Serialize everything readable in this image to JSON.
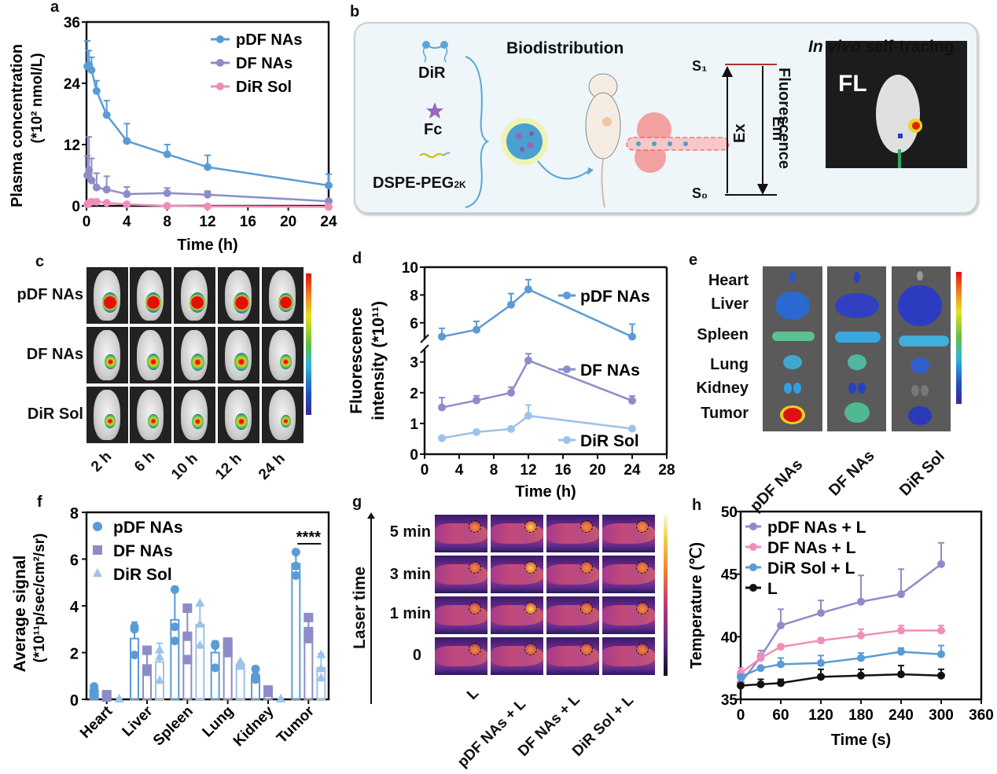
{
  "panel_labels": [
    "a",
    "b",
    "c",
    "d",
    "e",
    "f",
    "g",
    "h"
  ],
  "colors": {
    "pdf": "#5b9bd5",
    "df": "#8e8cc8",
    "dir": "#ee8fbb",
    "dir_light": "#9cc3ea",
    "laser": "#111111",
    "panel_b_bg": "#eef6f9"
  },
  "chart_data": [
    {
      "id": "a",
      "type": "line",
      "title": "",
      "xlabel": "Time (h)",
      "ylabel": "Plasma concentration",
      "ylabel2": "(*10² nmol/L)",
      "xlim": [
        0,
        24
      ],
      "ylim": [
        0,
        36
      ],
      "xticks": [
        0,
        4,
        8,
        12,
        16,
        20,
        24
      ],
      "yticks": [
        0,
        12,
        24,
        36
      ],
      "legend": "top-right",
      "x": [
        0.083,
        0.25,
        0.5,
        1,
        2,
        4,
        8,
        12,
        24
      ],
      "series": [
        {
          "name": "pDF NAs",
          "color": "#5b9bd5",
          "values": [
            27.3,
            27.6,
            26.6,
            22.5,
            17.8,
            12.7,
            10.1,
            7.6,
            4.0
          ],
          "err": [
            5.0,
            2.8,
            2.5,
            2.0,
            2.8,
            3.4,
            1.9,
            2.3,
            2.2
          ]
        },
        {
          "name": "DF NAs",
          "color": "#8e8cc8",
          "values": [
            6.0,
            7.0,
            5.0,
            3.6,
            3.2,
            2.3,
            2.5,
            2.2,
            0.9
          ],
          "err": [
            3.8,
            6.5,
            4.3,
            2.8,
            2.6,
            1.4,
            1.0,
            0.7,
            0.0
          ]
        },
        {
          "name": "DiR Sol",
          "color": "#ee8fbb",
          "values": [
            0.3,
            0.6,
            0.8,
            0.8,
            0.6,
            0.3,
            0.0,
            -0.1,
            -0.2
          ],
          "err": [
            0,
            0,
            0,
            0,
            0,
            0,
            0,
            0,
            0
          ]
        }
      ]
    },
    {
      "id": "d",
      "type": "line",
      "xlabel": "Time (h)",
      "ylabel": "Fluorescence",
      "ylabel2": "intensity (*10¹¹)",
      "xlim": [
        0,
        28
      ],
      "y_break": {
        "lower": [
          0,
          3.4
        ],
        "upper": [
          4.5,
          10
        ]
      },
      "xticks": [
        0,
        4,
        8,
        12,
        16,
        20,
        24,
        28
      ],
      "yticks_lower": [
        0,
        1,
        2,
        3
      ],
      "yticks_upper": [
        6,
        8,
        10
      ],
      "legend": "inline-right",
      "x": [
        2,
        6,
        10,
        12,
        24
      ],
      "series": [
        {
          "name": "pDF NAs",
          "color": "#5b9bd5",
          "values": [
            5.0,
            5.5,
            7.3,
            8.4,
            5.0
          ],
          "err": [
            0.6,
            0.6,
            0.8,
            0.7,
            0.9
          ]
        },
        {
          "name": "DF NAs",
          "color": "#8e8cc8",
          "values": [
            1.52,
            1.75,
            2.0,
            3.05,
            1.74
          ],
          "err": [
            0.32,
            0.15,
            0.18,
            0.22,
            0.15
          ]
        },
        {
          "name": "DiR Sol",
          "color": "#9cc3ea",
          "values": [
            0.52,
            0.72,
            0.82,
            1.25,
            0.83
          ],
          "err": [
            0,
            0,
            0,
            0.35,
            0
          ]
        }
      ]
    },
    {
      "id": "f",
      "type": "bar",
      "xlabel": "",
      "ylabel": "Average signal",
      "ylabel2": "(*10¹¹p/sec/cm²/sr)",
      "ylim": [
        0,
        8
      ],
      "yticks": [
        0,
        2,
        4,
        6,
        8
      ],
      "legend": "top-left",
      "categories": [
        "Heart",
        "Liver",
        "Spleen",
        "Lung",
        "Kidney",
        "Tumor"
      ],
      "series": [
        {
          "name": "pDF NAs",
          "marker": "circle",
          "color": "#5b9bd5",
          "values": [
            0.4,
            2.6,
            3.4,
            2.0,
            1.0,
            5.8
          ],
          "err": [
            0.1,
            0.7,
            1.3,
            0.5,
            0.3,
            0.5
          ],
          "points": [
            [
              0.2,
              0.4,
              0.55
            ],
            [
              1.9,
              3.0,
              3.1
            ],
            [
              2.5,
              3.1,
              4.7
            ],
            [
              1.35,
              2.3,
              2.35
            ],
            [
              0.85,
              1.0,
              1.3
            ],
            [
              5.3,
              5.7,
              6.3
            ]
          ]
        },
        {
          "name": "DF NAs",
          "marker": "square",
          "color": "#8e8cc8",
          "values": [
            0.15,
            1.45,
            2.8,
            2.25,
            0.35,
            3.0
          ],
          "err": [
            0,
            0.6,
            1.1,
            0.2,
            0,
            0.5
          ],
          "points": [
            [
              0.1,
              0.15,
              0.2
            ],
            [
              1.2,
              1.3,
              2.1
            ],
            [
              1.7,
              2.7,
              3.9
            ],
            [
              2.0,
              2.3,
              2.45
            ],
            [
              0.3,
              0.35,
              0.4
            ],
            [
              2.6,
              2.9,
              3.5
            ]
          ]
        },
        {
          "name": "DiR Sol",
          "marker": "triangle",
          "color": "#9cc3ea",
          "values": [
            0.0,
            1.6,
            3.2,
            1.5,
            0.0,
            1.35
          ],
          "err": [
            0,
            0.8,
            0.9,
            0.1,
            0,
            0.6
          ],
          "points": [
            [
              0,
              0,
              0
            ],
            [
              0.8,
              1.8,
              2.1
            ],
            [
              2.3,
              3.2,
              4.1
            ],
            [
              1.4,
              1.5,
              1.6
            ],
            [
              0,
              0,
              0
            ],
            [
              0.9,
              1.3,
              1.9
            ]
          ]
        }
      ],
      "annotation": {
        "text": "****",
        "between": [
          "pDF NAs",
          "DiR Sol"
        ],
        "category": "Tumor"
      }
    },
    {
      "id": "h",
      "type": "line",
      "xlabel": "Time (s)",
      "ylabel": "Temperature (℃)",
      "xlim": [
        0,
        360
      ],
      "ylim": [
        35,
        50
      ],
      "xticks": [
        0,
        60,
        120,
        180,
        240,
        300,
        360
      ],
      "yticks": [
        35,
        40,
        45,
        50
      ],
      "legend": "top-left",
      "x": [
        0,
        30,
        60,
        120,
        180,
        240,
        300
      ],
      "series": [
        {
          "name": "pDF NAs + L",
          "color": "#8e8cc8",
          "values": [
            36.3,
            38.4,
            40.9,
            41.9,
            42.8,
            43.4,
            45.8
          ],
          "err": [
            0,
            0.5,
            1.3,
            1.0,
            2.1,
            2.0,
            1.7
          ]
        },
        {
          "name": "DF NAs + L",
          "color": "#ee8fbb",
          "values": [
            37.1,
            38.3,
            39.2,
            39.7,
            40.1,
            40.5,
            40.5
          ],
          "err": [
            0.4,
            0.4,
            0,
            0.2,
            0.5,
            0.4,
            0.4
          ]
        },
        {
          "name": "DiR Sol + L",
          "color": "#5b9bd5",
          "values": [
            36.8,
            37.5,
            37.8,
            37.9,
            38.3,
            38.8,
            38.6
          ],
          "err": [
            0,
            0,
            0.5,
            0.6,
            0.4,
            0.3,
            0.7
          ]
        },
        {
          "name": "L",
          "color": "#111111",
          "values": [
            36.1,
            36.2,
            36.3,
            36.8,
            36.9,
            37.0,
            36.9
          ],
          "err": [
            0,
            0.4,
            0.3,
            0.6,
            0.5,
            0.7,
            0.5
          ]
        }
      ]
    }
  ],
  "panel_b": {
    "components": [
      "DiR",
      "Fc",
      "DSPE-PEG",
      "2K"
    ],
    "title": "Biodistribution",
    "energy": {
      "s1": "S₁",
      "s0": "S₀",
      "ex": "Ex",
      "em": "Em",
      "fluorescence": "Fluorescence"
    },
    "tracing_title_italic": "In vivo",
    "tracing_title_rest": " self-tracing",
    "fl_label": "FL"
  },
  "panel_c": {
    "rows": [
      "pDF NAs",
      "DF NAs",
      "DiR Sol"
    ],
    "cols": [
      "2 h",
      "6 h",
      "10 h",
      "12 h",
      "24 h"
    ]
  },
  "panel_e": {
    "organs": [
      "Heart",
      "Liver",
      "Spleen",
      "Lung",
      "Kidney",
      "Tumor"
    ],
    "groups": [
      "pDF NAs",
      "DF NAs",
      "DiR Sol"
    ]
  },
  "panel_g": {
    "axis_label": "Laser time",
    "rows": [
      "5 min",
      "3 min",
      "1 min",
      "0"
    ],
    "cols": [
      "L",
      "pDF NAs + L",
      "DF NAs + L",
      "DiR Sol + L"
    ]
  }
}
